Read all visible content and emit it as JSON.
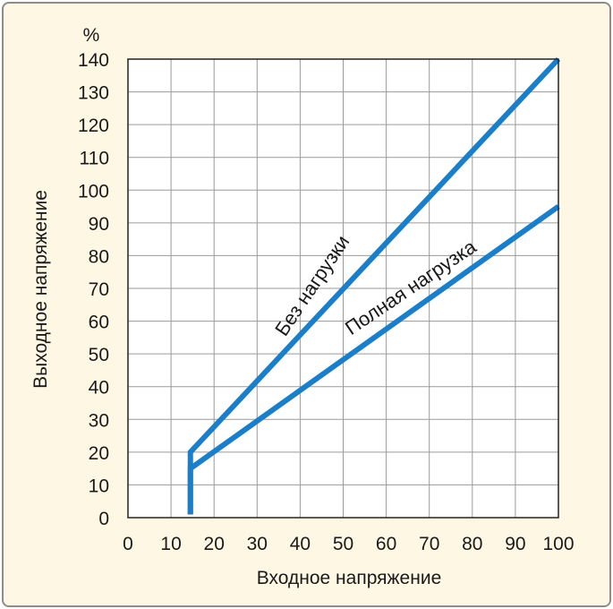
{
  "chart_data": {
    "type": "line",
    "unit_label": "%",
    "xlabel": "Входное напряжение",
    "ylabel": "Выходное напряжение",
    "xlim": [
      0,
      100
    ],
    "ylim": [
      0,
      140
    ],
    "xticks": [
      0,
      10,
      20,
      30,
      40,
      50,
      60,
      70,
      80,
      90,
      100
    ],
    "yticks": [
      0,
      10,
      20,
      30,
      40,
      50,
      60,
      70,
      80,
      90,
      100,
      110,
      120,
      130,
      140
    ],
    "grid": true,
    "series_color": "#1a7fc8",
    "series": [
      {
        "name": "Без нагрузки",
        "x": [
          14.5,
          14.5,
          100
        ],
        "y": [
          1,
          20,
          140
        ]
      },
      {
        "name": "Полная нагрузка",
        "x": [
          14.5,
          14.5,
          100
        ],
        "y": [
          1,
          15,
          95
        ]
      }
    ]
  }
}
